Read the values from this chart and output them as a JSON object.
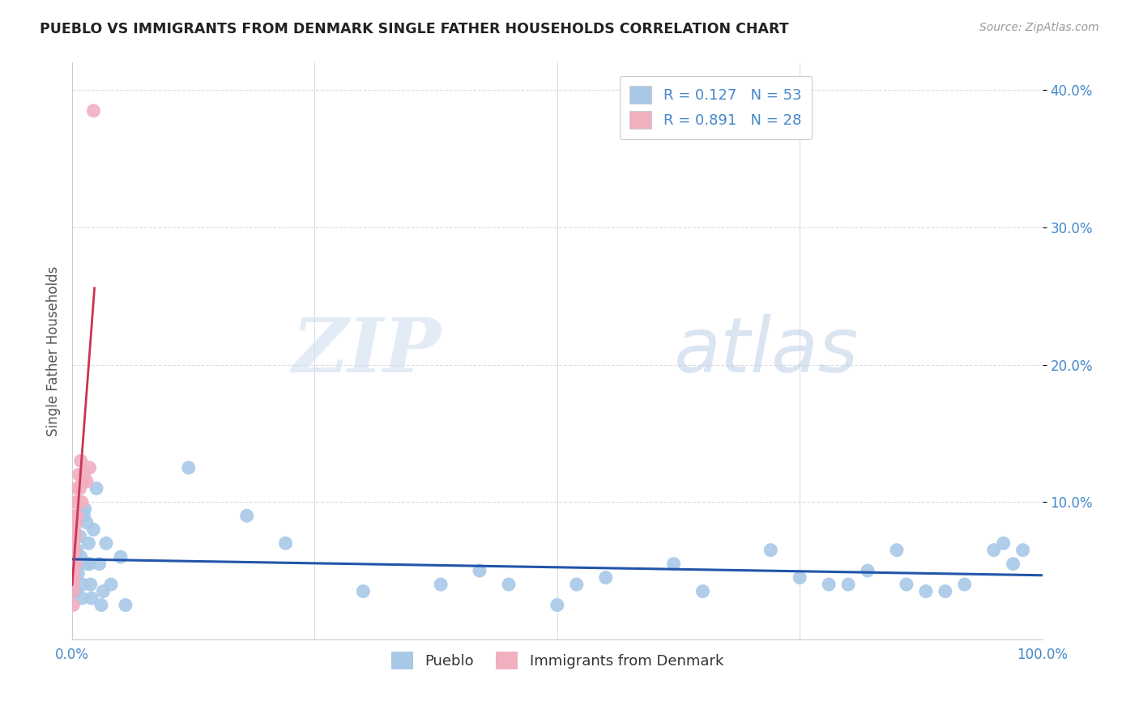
{
  "title": "PUEBLO VS IMMIGRANTS FROM DENMARK SINGLE FATHER HOUSEHOLDS CORRELATION CHART",
  "source": "Source: ZipAtlas.com",
  "ylabel_label": "Single Father Households",
  "legend_labels": [
    "Pueblo",
    "Immigrants from Denmark"
  ],
  "r_pueblo": 0.127,
  "n_pueblo": 53,
  "r_denmark": 0.891,
  "n_denmark": 28,
  "pueblo_color": "#a8c8e8",
  "pueblo_line_color": "#2255aa",
  "denmark_color": "#f0b0c0",
  "denmark_line_color": "#cc3355",
  "pueblo_x": [
    0.002,
    0.003,
    0.004,
    0.005,
    0.006,
    0.007,
    0.008,
    0.009,
    0.01,
    0.011,
    0.012,
    0.013,
    0.015,
    0.016,
    0.017,
    0.018,
    0.019,
    0.02,
    0.022,
    0.025,
    0.028,
    0.03,
    0.032,
    0.035,
    0.04,
    0.05,
    0.055,
    0.12,
    0.18,
    0.22,
    0.3,
    0.38,
    0.42,
    0.45,
    0.5,
    0.52,
    0.55,
    0.62,
    0.65,
    0.72,
    0.75,
    0.78,
    0.8,
    0.82,
    0.85,
    0.86,
    0.88,
    0.9,
    0.92,
    0.95,
    0.96,
    0.97,
    0.98
  ],
  "pueblo_y": [
    0.055,
    0.045,
    0.035,
    0.065,
    0.048,
    0.055,
    0.075,
    0.06,
    0.03,
    0.04,
    0.09,
    0.095,
    0.085,
    0.055,
    0.07,
    0.055,
    0.04,
    0.03,
    0.08,
    0.11,
    0.055,
    0.025,
    0.035,
    0.07,
    0.04,
    0.06,
    0.025,
    0.125,
    0.09,
    0.07,
    0.035,
    0.04,
    0.05,
    0.04,
    0.025,
    0.04,
    0.045,
    0.055,
    0.035,
    0.065,
    0.045,
    0.04,
    0.04,
    0.05,
    0.065,
    0.04,
    0.035,
    0.035,
    0.04,
    0.065,
    0.07,
    0.055,
    0.065
  ],
  "denmark_x": [
    0.001,
    0.001,
    0.001,
    0.001,
    0.001,
    0.001,
    0.002,
    0.002,
    0.002,
    0.002,
    0.002,
    0.003,
    0.003,
    0.003,
    0.004,
    0.004,
    0.005,
    0.005,
    0.006,
    0.007,
    0.008,
    0.009,
    0.01,
    0.011,
    0.012,
    0.015,
    0.018,
    0.022
  ],
  "denmark_y": [
    0.05,
    0.06,
    0.07,
    0.04,
    0.035,
    0.025,
    0.075,
    0.065,
    0.055,
    0.045,
    0.08,
    0.09,
    0.075,
    0.055,
    0.1,
    0.085,
    0.11,
    0.09,
    0.1,
    0.12,
    0.11,
    0.13,
    0.1,
    0.115,
    0.12,
    0.115,
    0.125,
    0.385
  ],
  "watermark_zip": "ZIP",
  "watermark_atlas": "atlas",
  "background_color": "#ffffff",
  "grid_color": "#dddddd",
  "xlim": [
    0.0,
    1.0
  ],
  "ylim": [
    0.0,
    0.42
  ]
}
